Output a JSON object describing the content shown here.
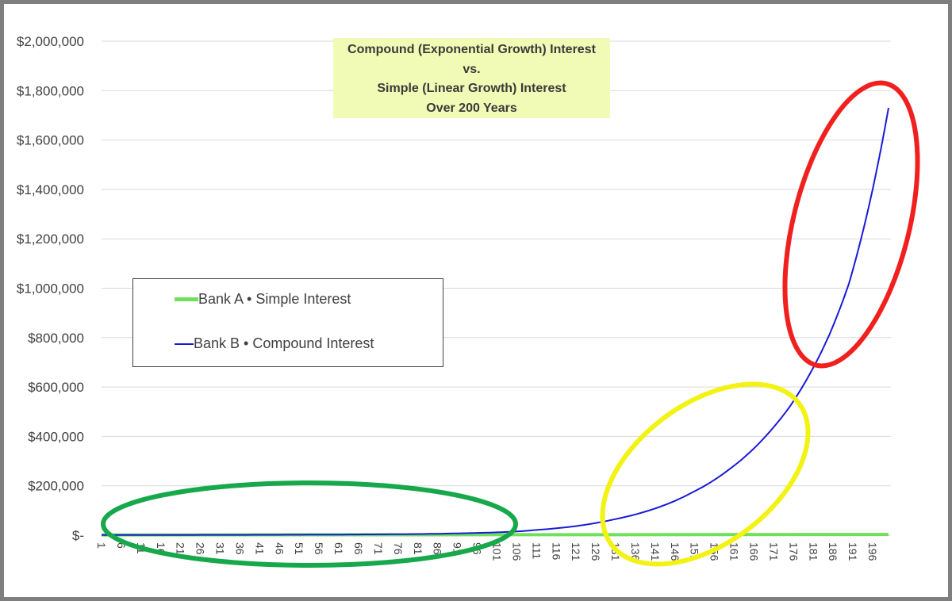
{
  "chart_data": {
    "type": "line",
    "title_lines": [
      "Compound (Exponential Growth) Interest",
      "vs.",
      "Simple (Linear Growth) Interest",
      "Over 200 Years"
    ],
    "xlabel": "",
    "ylabel": "",
    "ylim": [
      0,
      2000000
    ],
    "xlim": [
      1,
      200
    ],
    "y_ticks": [
      {
        "value": 0,
        "label": "$-"
      },
      {
        "value": 200000,
        "label": "$200,000"
      },
      {
        "value": 400000,
        "label": "$400,000"
      },
      {
        "value": 600000,
        "label": "$600,000"
      },
      {
        "value": 800000,
        "label": "$800,000"
      },
      {
        "value": 1000000,
        "label": "$1,000,000"
      },
      {
        "value": 1200000,
        "label": "$1,200,000"
      },
      {
        "value": 1400000,
        "label": "$1,400,000"
      },
      {
        "value": 1600000,
        "label": "$1,600,000"
      },
      {
        "value": 1800000,
        "label": "$1,800,000"
      },
      {
        "value": 2000000,
        "label": "$2,000,000"
      }
    ],
    "x_tick_labels": [
      "1",
      "6",
      "11",
      "16",
      "21",
      "26",
      "31",
      "36",
      "41",
      "46",
      "51",
      "56",
      "61",
      "66",
      "71",
      "76",
      "81",
      "86",
      "91",
      "96",
      "101",
      "106",
      "111",
      "116",
      "121",
      "126",
      "131",
      "136",
      "141",
      "146",
      "151",
      "156",
      "161",
      "166",
      "171",
      "176",
      "181",
      "186",
      "191",
      "196"
    ],
    "grid": true,
    "legend_position": "left-middle",
    "series": [
      {
        "name": "Bank A • Simple Interest",
        "color": "#70e05a",
        "x": [
          1,
          200
        ],
        "values": [
          1000,
          3000
        ]
      },
      {
        "name": "Bank B • Compound Interest",
        "color": "#1a1ad6",
        "x": [
          1,
          20,
          40,
          60,
          80,
          100,
          106,
          110,
          120,
          130,
          140,
          150,
          160,
          170,
          175,
          180,
          185,
          190,
          195,
          200
        ],
        "values": [
          1000,
          1000,
          1500,
          2500,
          4500,
          11000,
          15000,
          20000,
          35000,
          62000,
          103000,
          170000,
          270000,
          420000,
          520000,
          650000,
          810000,
          1020000,
          1330000,
          1730000
        ]
      }
    ],
    "highlight_ellipses": [
      {
        "color": "#16a84a",
        "covers_years": "1-106"
      },
      {
        "color": "#f2f213",
        "covers_years": "126-176"
      },
      {
        "color": "#f0201e",
        "covers_years": "180-200"
      }
    ]
  }
}
